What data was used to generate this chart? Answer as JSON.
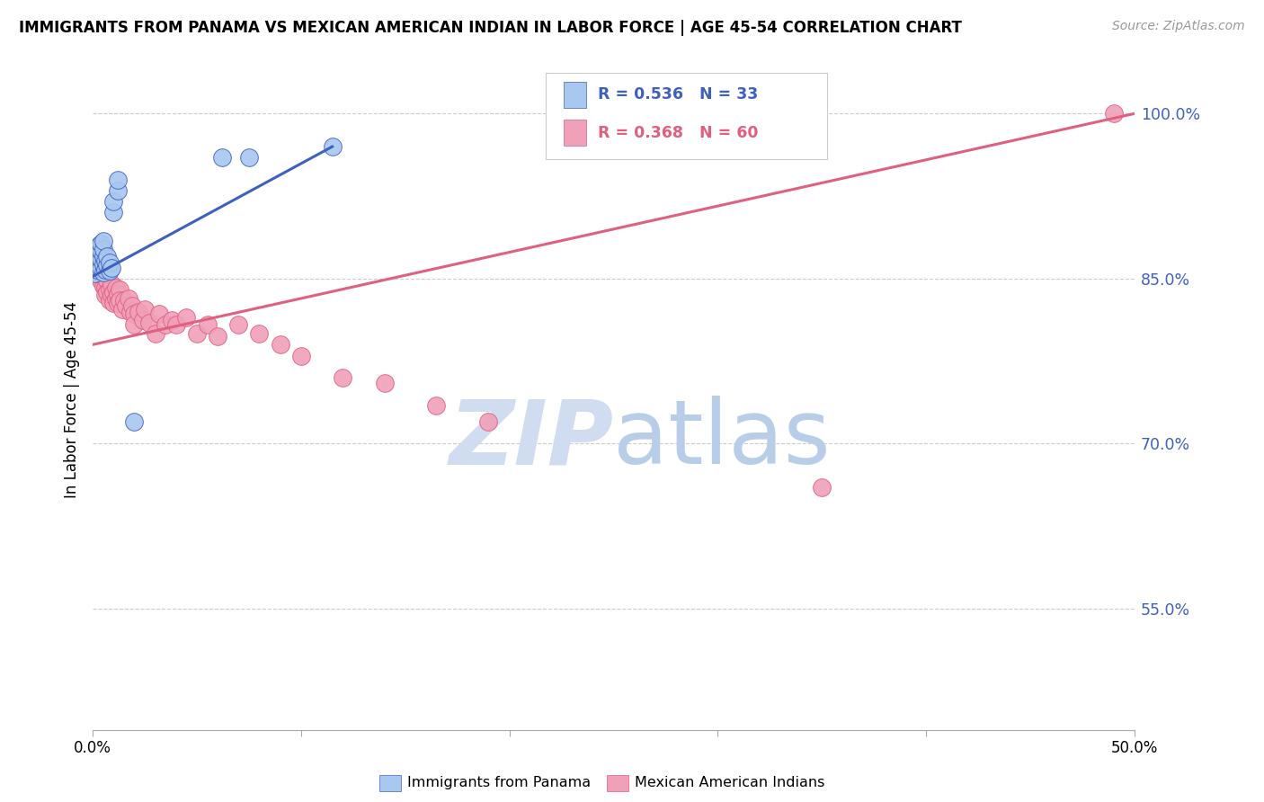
{
  "title": "IMMIGRANTS FROM PANAMA VS MEXICAN AMERICAN INDIAN IN LABOR FORCE | AGE 45-54 CORRELATION CHART",
  "source": "Source: ZipAtlas.com",
  "ylabel": "In Labor Force | Age 45-54",
  "xmin": 0.0,
  "xmax": 0.5,
  "ymin": 0.44,
  "ymax": 1.04,
  "legend_blue_r": "R = 0.536",
  "legend_blue_n": "N = 33",
  "legend_pink_r": "R = 0.368",
  "legend_pink_n": "N = 60",
  "legend_blue_label": "Immigrants from Panama",
  "legend_pink_label": "Mexican American Indians",
  "blue_color": "#A8C8F0",
  "pink_color": "#F0A0B8",
  "blue_line_color": "#4060C0",
  "pink_line_color": "#E06080",
  "watermark_zip": "ZIP",
  "watermark_atlas": "atlas",
  "watermark_color": "#D0DCF0",
  "blue_points_x": [
    0.001,
    0.001,
    0.002,
    0.002,
    0.002,
    0.003,
    0.003,
    0.003,
    0.003,
    0.004,
    0.004,
    0.004,
    0.004,
    0.005,
    0.005,
    0.005,
    0.005,
    0.005,
    0.006,
    0.006,
    0.007,
    0.007,
    0.008,
    0.008,
    0.009,
    0.01,
    0.01,
    0.012,
    0.012,
    0.02,
    0.062,
    0.075,
    0.115
  ],
  "blue_points_y": [
    0.855,
    0.862,
    0.858,
    0.865,
    0.873,
    0.86,
    0.867,
    0.874,
    0.88,
    0.86,
    0.868,
    0.875,
    0.882,
    0.856,
    0.863,
    0.87,
    0.877,
    0.884,
    0.858,
    0.866,
    0.862,
    0.87,
    0.857,
    0.865,
    0.86,
    0.91,
    0.92,
    0.93,
    0.94,
    0.72,
    0.96,
    0.96,
    0.97
  ],
  "pink_points_x": [
    0.001,
    0.001,
    0.002,
    0.002,
    0.003,
    0.003,
    0.003,
    0.004,
    0.004,
    0.005,
    0.005,
    0.005,
    0.006,
    0.006,
    0.006,
    0.007,
    0.007,
    0.008,
    0.008,
    0.009,
    0.009,
    0.01,
    0.01,
    0.011,
    0.011,
    0.012,
    0.012,
    0.013,
    0.013,
    0.014,
    0.015,
    0.016,
    0.017,
    0.018,
    0.019,
    0.02,
    0.02,
    0.022,
    0.024,
    0.025,
    0.027,
    0.03,
    0.032,
    0.035,
    0.038,
    0.04,
    0.045,
    0.05,
    0.055,
    0.06,
    0.07,
    0.08,
    0.09,
    0.1,
    0.12,
    0.14,
    0.165,
    0.19,
    0.35,
    0.49
  ],
  "pink_points_y": [
    0.87,
    0.878,
    0.86,
    0.868,
    0.855,
    0.863,
    0.872,
    0.855,
    0.848,
    0.852,
    0.86,
    0.843,
    0.85,
    0.842,
    0.835,
    0.848,
    0.838,
    0.84,
    0.83,
    0.845,
    0.835,
    0.838,
    0.828,
    0.842,
    0.832,
    0.836,
    0.828,
    0.84,
    0.83,
    0.822,
    0.83,
    0.825,
    0.832,
    0.82,
    0.825,
    0.818,
    0.808,
    0.82,
    0.812,
    0.822,
    0.81,
    0.8,
    0.818,
    0.808,
    0.812,
    0.808,
    0.815,
    0.8,
    0.808,
    0.798,
    0.808,
    0.8,
    0.79,
    0.78,
    0.76,
    0.755,
    0.735,
    0.72,
    0.66,
    1.0
  ],
  "blue_line_x0": 0.0,
  "blue_line_y0": 0.852,
  "blue_line_x1": 0.115,
  "blue_line_y1": 0.97,
  "pink_line_x0": 0.0,
  "pink_line_y0": 0.79,
  "pink_line_x1": 0.5,
  "pink_line_y1": 1.0,
  "ytick_vals": [
    0.55,
    0.7,
    0.85,
    1.0
  ],
  "ytick_labels": [
    "55.0%",
    "70.0%",
    "85.0%",
    "100.0%"
  ],
  "grid_color": "#CCCCCC",
  "background_color": "#FFFFFF",
  "title_fontsize": 12,
  "source_fontsize": 10
}
